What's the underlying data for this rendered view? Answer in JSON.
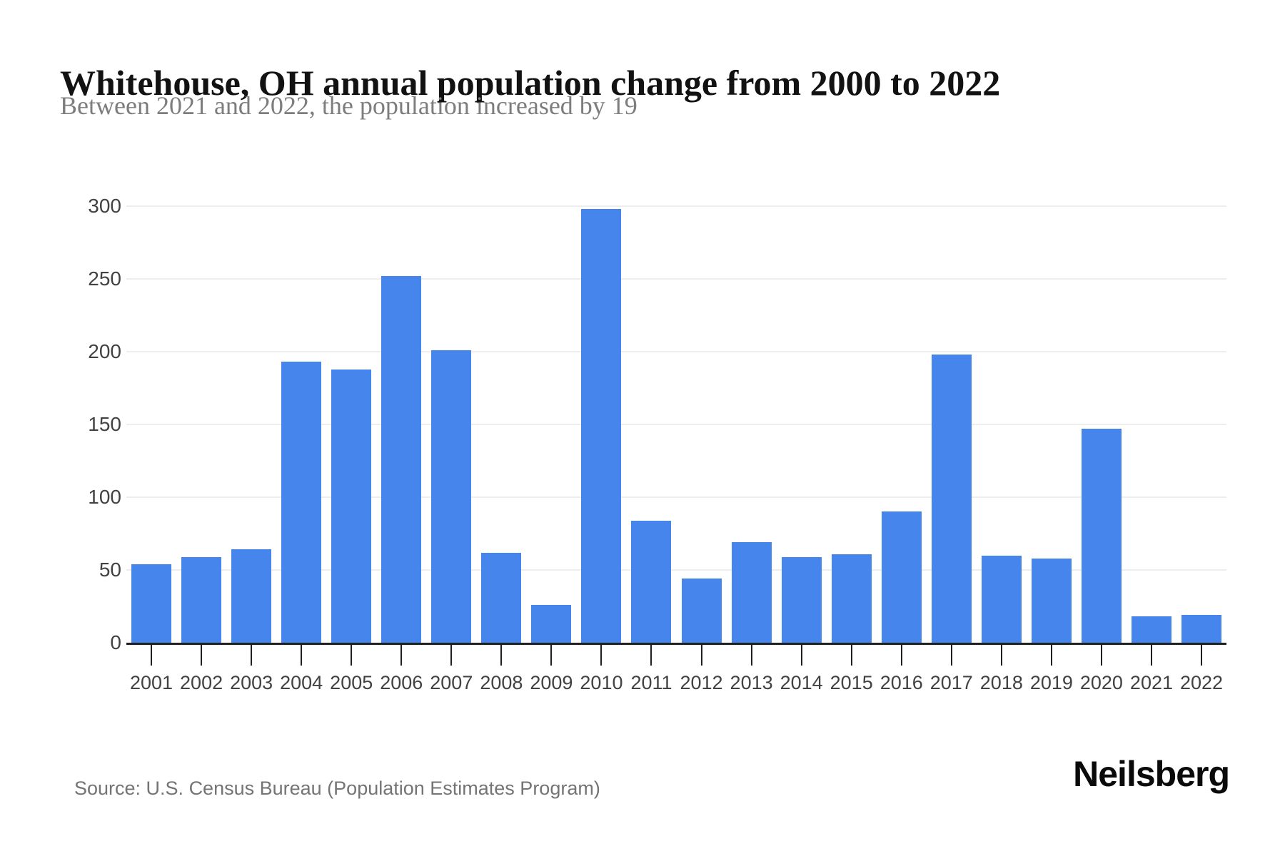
{
  "page": {
    "title": "Whitehouse, OH annual population change from 2000 to 2022",
    "subtitle": "Between 2021 and 2022, the population increased by 19",
    "source": "Source: U.S. Census Bureau (Population Estimates Program)",
    "brand": "Neilsberg"
  },
  "colors": {
    "bar": "#4685EC",
    "grid": "#eeeeee",
    "axis": "#202020",
    "axis_label": "#424242",
    "title": "#121212",
    "subtitle": "#7d7d7d",
    "source": "#747474"
  },
  "chart_data": {
    "type": "bar",
    "title": "Whitehouse, OH annual population change from 2000 to 2022",
    "subtitle": "Between 2021 and 2022, the population increased by 19",
    "categories": [
      "2001",
      "2002",
      "2003",
      "2004",
      "2005",
      "2006",
      "2007",
      "2008",
      "2009",
      "2010",
      "2011",
      "2012",
      "2013",
      "2014",
      "2015",
      "2016",
      "2017",
      "2018",
      "2019",
      "2020",
      "2021",
      "2022"
    ],
    "values": [
      54,
      59,
      64,
      193,
      188,
      252,
      201,
      62,
      26,
      298,
      84,
      44,
      69,
      59,
      61,
      90,
      198,
      60,
      58,
      147,
      18,
      19
    ],
    "xlabel": "",
    "ylabel": "",
    "ylim": [
      0,
      300
    ],
    "yticks": [
      0,
      50,
      100,
      150,
      200,
      250,
      300
    ],
    "grid": "horizontal",
    "legend": "none",
    "bar_color": "#4685EC"
  }
}
